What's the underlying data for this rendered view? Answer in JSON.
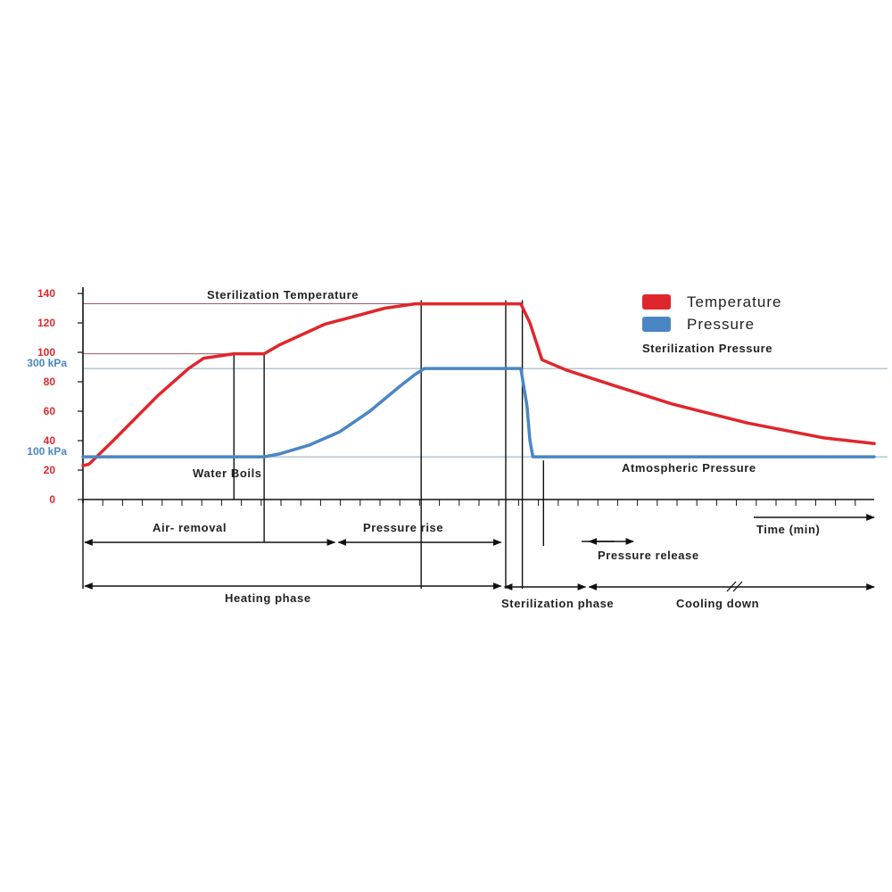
{
  "chart_data": {
    "type": "line",
    "title": "",
    "xlabel": "Time (min)",
    "ylabel": "",
    "grid": false,
    "legend": {
      "position": "top-right"
    },
    "ylim": [
      0,
      140
    ],
    "yticks": [
      0,
      20,
      40,
      60,
      80,
      100,
      120,
      140
    ],
    "secondary_ticks": [
      {
        "label": "300 kPa",
        "value": 89
      },
      {
        "label": "100 kPa",
        "value": 29
      }
    ],
    "series": [
      {
        "name": "Temperature",
        "color": "#e0262c",
        "points": [
          [
            0,
            23
          ],
          [
            2,
            24
          ],
          [
            10,
            40
          ],
          [
            25,
            71
          ],
          [
            35,
            89
          ],
          [
            40,
            96
          ],
          [
            50,
            99
          ],
          [
            60,
            99
          ],
          [
            65,
            105
          ],
          [
            80,
            119
          ],
          [
            100,
            130
          ],
          [
            110,
            133
          ],
          [
            145,
            133
          ],
          [
            148,
            120
          ],
          [
            152,
            95
          ],
          [
            160,
            88
          ],
          [
            175,
            78
          ],
          [
            195,
            65
          ],
          [
            220,
            52
          ],
          [
            245,
            42
          ],
          [
            262,
            38
          ]
        ]
      },
      {
        "name": "Pressure",
        "color": "#4a86c4",
        "points": [
          [
            0,
            29
          ],
          [
            60,
            29
          ],
          [
            65,
            31
          ],
          [
            75,
            37
          ],
          [
            85,
            46
          ],
          [
            95,
            60
          ],
          [
            105,
            77
          ],
          [
            110,
            85
          ],
          [
            113,
            89
          ],
          [
            145,
            89
          ],
          [
            147,
            64
          ],
          [
            148,
            40
          ],
          [
            149,
            29
          ],
          [
            262,
            29
          ]
        ]
      }
    ],
    "reference_lines": [
      {
        "label": "Sterilization Temperature",
        "value": 133
      },
      {
        "label": "",
        "value": 99
      },
      {
        "label": "Sterilization Pressure",
        "value": 89
      },
      {
        "label": "Atmospheric Pressure",
        "value": 29
      }
    ],
    "annotations": [
      "Water Boils"
    ],
    "phases": [
      {
        "label": "Air- removal",
        "start": 0,
        "end": 84
      },
      {
        "label": "Pressure rise",
        "start": 84,
        "end": 139
      },
      {
        "label": "Heating phase",
        "start": 0,
        "end": 139
      },
      {
        "label": "Sterilization phase",
        "start": 139,
        "end": 167
      },
      {
        "label": "Pressure release",
        "start": 167,
        "end": 174
      },
      {
        "label": "Cooling down",
        "start": 167,
        "end": 262
      }
    ]
  }
}
